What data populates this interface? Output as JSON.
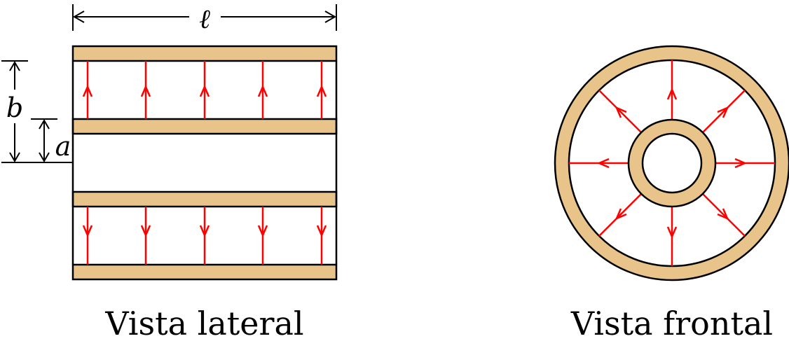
{
  "labels": {
    "length": "ℓ",
    "outer_radius": "b",
    "inner_radius": "a",
    "side_view_caption": "Vista lateral",
    "front_view_caption": "Vista frontal"
  },
  "colors": {
    "conductor_fill": "#E8C48B",
    "field_lines": "#FF0000",
    "outline": "#000000",
    "background": "#FFFFFF"
  },
  "diagram": {
    "side_view_field_lines_per_gap": 5,
    "side_view_field_direction": "outward from inner conductor to outer conductor",
    "front_view_radial_field_lines": 8
  }
}
